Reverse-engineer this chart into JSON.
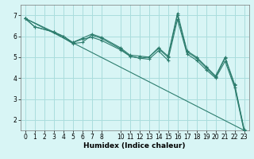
{
  "title": "",
  "xlabel": "Humidex (Indice chaleur)",
  "ylabel": "",
  "bg_color": "#d8f5f5",
  "grid_color": "#aadddd",
  "line_color": "#2d7d6e",
  "xlim": [
    -0.5,
    23.5
  ],
  "ylim": [
    1.5,
    7.5
  ],
  "xticks": [
    0,
    1,
    2,
    3,
    4,
    5,
    6,
    7,
    8,
    10,
    11,
    12,
    13,
    14,
    15,
    16,
    17,
    18,
    19,
    20,
    21,
    22,
    23
  ],
  "yticks": [
    2,
    3,
    4,
    5,
    6,
    7
  ],
  "series": [
    {
      "x": [
        0,
        1,
        3,
        4,
        5,
        6,
        7,
        8,
        10,
        11,
        12,
        13,
        14,
        15,
        16,
        17,
        18,
        19,
        20,
        21,
        22,
        23
      ],
      "y": [
        6.85,
        6.45,
        6.2,
        6.0,
        5.7,
        5.9,
        6.1,
        5.95,
        5.45,
        5.1,
        5.05,
        5.0,
        5.45,
        5.05,
        7.1,
        5.3,
        5.0,
        4.55,
        4.1,
        5.0,
        3.7,
        1.55
      ]
    },
    {
      "x": [
        0,
        1,
        3,
        4,
        5,
        6,
        7,
        8,
        10,
        11,
        12,
        13,
        14,
        15,
        16,
        17,
        18,
        19,
        20,
        21,
        22,
        23
      ],
      "y": [
        6.85,
        6.45,
        6.2,
        6.0,
        5.7,
        5.85,
        5.95,
        5.8,
        5.35,
        5.05,
        4.95,
        4.9,
        5.3,
        4.85,
        6.8,
        5.15,
        4.85,
        4.4,
        4.0,
        4.8,
        3.55,
        1.45
      ]
    },
    {
      "x": [
        0,
        3,
        5,
        6,
        7,
        8,
        10,
        11,
        12,
        13,
        14,
        15,
        16,
        17,
        18,
        19,
        20,
        21,
        22,
        23
      ],
      "y": [
        6.85,
        6.2,
        5.65,
        5.7,
        6.05,
        5.9,
        5.4,
        5.05,
        4.95,
        5.0,
        5.4,
        5.0,
        7.0,
        5.25,
        4.95,
        4.5,
        4.05,
        4.95,
        3.65,
        1.5
      ]
    },
    {
      "x": [
        0,
        23
      ],
      "y": [
        6.85,
        1.5
      ]
    }
  ]
}
